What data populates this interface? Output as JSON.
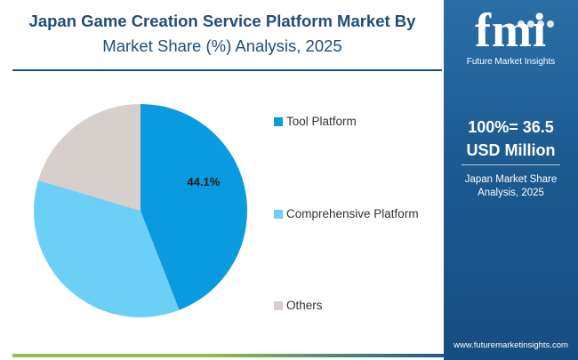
{
  "title": {
    "line1": "Japan Game Creation Service Platform Market By",
    "line2": "Market Share (%) Analysis, 2025"
  },
  "chart_data": {
    "type": "pie",
    "slices": [
      {
        "label": "Tool Platform",
        "value": 44.1,
        "color": "#0a9ae0",
        "value_label": "44.1%"
      },
      {
        "label": "Comprehensive Platform",
        "value": 35.5,
        "color": "#6ccff5"
      },
      {
        "label": "Others",
        "value": 20.4,
        "color": "#d7cfcb"
      }
    ],
    "legend_position": "right"
  },
  "panel": {
    "logo_text": "fmi",
    "logo_subtitle": "Future Market Insights",
    "total_line1": "100%= 36.5",
    "total_line2": "USD Million",
    "caption_line1": "Japan Market Share",
    "caption_line2": "Analysis, 2025",
    "website": "www.futuremarketinsights.com",
    "bg_color": "#1c5a90"
  }
}
